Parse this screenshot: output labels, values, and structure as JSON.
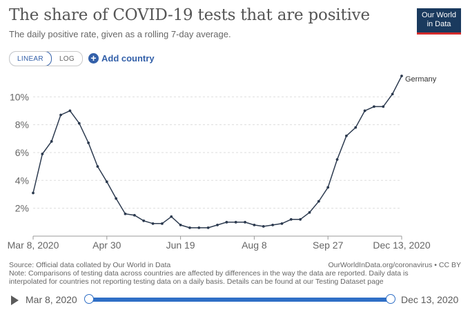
{
  "header": {
    "title": "The share of COVID-19 tests that are positive",
    "subtitle": "The daily positive rate, given as a rolling 7-day average.",
    "logo_line1": "Our World",
    "logo_line2": "in Data"
  },
  "controls": {
    "linear_label": "LINEAR",
    "log_label": "LOG",
    "add_country_label": "Add country",
    "selected_scale": "linear"
  },
  "chart_data": {
    "type": "line",
    "title": "The share of COVID-19 tests that are positive",
    "xlabel": "",
    "ylabel": "",
    "x_tick_labels": [
      "Mar 8, 2020",
      "Apr 30",
      "Jun 19",
      "Aug 8",
      "Sep 27",
      "Dec 13, 2020"
    ],
    "y_tick_labels": [
      "2%",
      "4%",
      "6%",
      "8%",
      "10%"
    ],
    "y_ticks": [
      2,
      4,
      6,
      8,
      10
    ],
    "ylim": [
      0,
      11.6
    ],
    "grid": "horizontal-dashed",
    "series": [
      {
        "name": "Germany",
        "color": "#2c3a4f",
        "points": [
          [
            "2020-03-08",
            3.1
          ],
          [
            "2020-03-15",
            5.9
          ],
          [
            "2020-03-22",
            6.8
          ],
          [
            "2020-03-29",
            8.7
          ],
          [
            "2020-04-05",
            9.0
          ],
          [
            "2020-04-12",
            8.1
          ],
          [
            "2020-04-19",
            6.7
          ],
          [
            "2020-04-26",
            5.0
          ],
          [
            "2020-05-03",
            3.9
          ],
          [
            "2020-05-10",
            2.7
          ],
          [
            "2020-05-17",
            1.6
          ],
          [
            "2020-05-24",
            1.5
          ],
          [
            "2020-05-31",
            1.1
          ],
          [
            "2020-06-07",
            0.9
          ],
          [
            "2020-06-14",
            0.9
          ],
          [
            "2020-06-21",
            1.4
          ],
          [
            "2020-06-28",
            0.8
          ],
          [
            "2020-07-05",
            0.6
          ],
          [
            "2020-07-12",
            0.6
          ],
          [
            "2020-07-19",
            0.6
          ],
          [
            "2020-07-26",
            0.8
          ],
          [
            "2020-08-02",
            1.0
          ],
          [
            "2020-08-09",
            1.0
          ],
          [
            "2020-08-16",
            1.0
          ],
          [
            "2020-08-23",
            0.8
          ],
          [
            "2020-08-30",
            0.7
          ],
          [
            "2020-09-06",
            0.8
          ],
          [
            "2020-09-13",
            0.9
          ],
          [
            "2020-09-20",
            1.2
          ],
          [
            "2020-09-27",
            1.2
          ],
          [
            "2020-10-04",
            1.7
          ],
          [
            "2020-10-11",
            2.5
          ],
          [
            "2020-10-18",
            3.5
          ],
          [
            "2020-10-25",
            5.5
          ],
          [
            "2020-11-01",
            7.2
          ],
          [
            "2020-11-08",
            7.8
          ],
          [
            "2020-11-15",
            9.0
          ],
          [
            "2020-11-22",
            9.3
          ],
          [
            "2020-11-29",
            9.3
          ],
          [
            "2020-12-06",
            10.2
          ],
          [
            "2020-12-13",
            11.5
          ]
        ]
      }
    ]
  },
  "footer": {
    "source": "Source: Official data collated by Our World in Data",
    "credit": "OurWorldInData.org/coronavirus • CC BY",
    "note": "Note: Comparisons of testing data across countries are affected by differences in the way the data are reported. Daily data is interpolated for countries not reporting testing data on a daily basis. Details can be found at our Testing Dataset page"
  },
  "timeline": {
    "start_label": "Mar 8, 2020",
    "end_label": "Dec 13, 2020"
  }
}
